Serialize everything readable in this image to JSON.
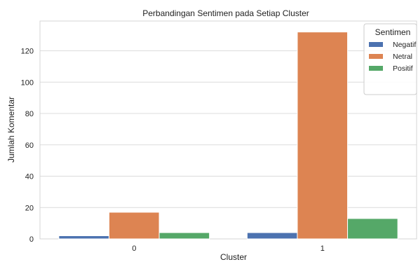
{
  "chart_data": {
    "type": "bar",
    "title": "Perbandingan Sentimen pada Setiap Cluster",
    "xlabel": "Cluster",
    "ylabel": "Jumlah Komentar",
    "categories": [
      "0",
      "1"
    ],
    "series": [
      {
        "name": "Negatif",
        "color": "#4c72b0",
        "values": [
          2,
          4
        ]
      },
      {
        "name": "Netral",
        "color": "#dd8452",
        "values": [
          17,
          132
        ]
      },
      {
        "name": "Positif",
        "color": "#55a868",
        "values": [
          4,
          13
        ]
      }
    ],
    "ylim": [
      0,
      139
    ],
    "yticks": [
      0,
      20,
      40,
      60,
      80,
      100,
      120
    ],
    "grid": true,
    "legend": {
      "title": "Sentimen",
      "placement": "top-right"
    }
  }
}
